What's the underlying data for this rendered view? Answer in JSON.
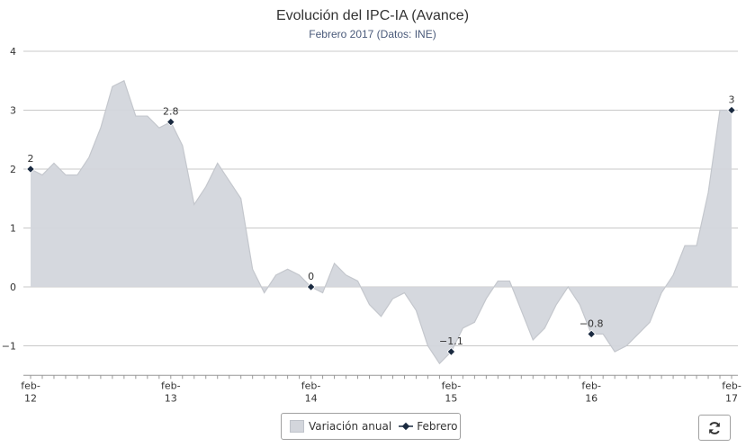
{
  "chart_data": {
    "type": "area",
    "title": "Evolución del IPC-IA (Avance)",
    "subtitle": "Febrero 2017 (Datos: INE)",
    "xlabel": "",
    "ylabel": "",
    "ylim": [
      -1.5,
      4
    ],
    "yticks": [
      -1,
      0,
      1,
      2,
      3,
      4
    ],
    "grid": true,
    "legend_placement": "bottom-center",
    "x_ticks": [
      {
        "line1": "feb-",
        "line2": "12",
        "index": 0
      },
      {
        "line1": "feb-",
        "line2": "13",
        "index": 12
      },
      {
        "line1": "feb-",
        "line2": "14",
        "index": 24
      },
      {
        "line1": "feb-",
        "line2": "15",
        "index": 36
      },
      {
        "line1": "feb-",
        "line2": "16",
        "index": 48
      },
      {
        "line1": "feb-",
        "line2": "17",
        "index": 60
      }
    ],
    "series": [
      {
        "name": "Variación anual",
        "type": "area",
        "color": "#d3d6dc",
        "stroke": "#c4c7cd",
        "values": [
          2.0,
          1.9,
          2.1,
          1.9,
          1.9,
          2.2,
          2.7,
          3.4,
          3.5,
          2.9,
          2.9,
          2.7,
          2.8,
          2.4,
          1.4,
          1.7,
          2.1,
          1.8,
          1.5,
          0.3,
          -0.1,
          0.2,
          0.3,
          0.2,
          0.0,
          -0.1,
          0.4,
          0.2,
          0.1,
          -0.3,
          -0.5,
          -0.2,
          -0.1,
          -0.4,
          -1.0,
          -1.3,
          -1.1,
          -0.7,
          -0.6,
          -0.2,
          0.1,
          0.1,
          -0.4,
          -0.9,
          -0.7,
          -0.3,
          0.0,
          -0.3,
          -0.8,
          -0.8,
          -1.1,
          -1.0,
          -0.8,
          -0.6,
          -0.1,
          0.2,
          0.7,
          0.7,
          1.6,
          3.0,
          3.0
        ]
      },
      {
        "name": "Febrero",
        "type": "line",
        "color": "#1a2a40",
        "points": [
          {
            "index": 0,
            "value": 2,
            "label": "2"
          },
          {
            "index": 12,
            "value": 2.8,
            "label": "2.8"
          },
          {
            "index": 24,
            "value": 0,
            "label": "0"
          },
          {
            "index": 36,
            "value": -1.1,
            "label": "−1.1"
          },
          {
            "index": 48,
            "value": -0.8,
            "label": "−0.8"
          },
          {
            "index": 60,
            "value": 3,
            "label": "3"
          }
        ]
      }
    ]
  },
  "legend": {
    "area_label": "Variación anual",
    "line_label": "Febrero"
  },
  "controls": {
    "refresh_icon": "refresh-icon"
  }
}
